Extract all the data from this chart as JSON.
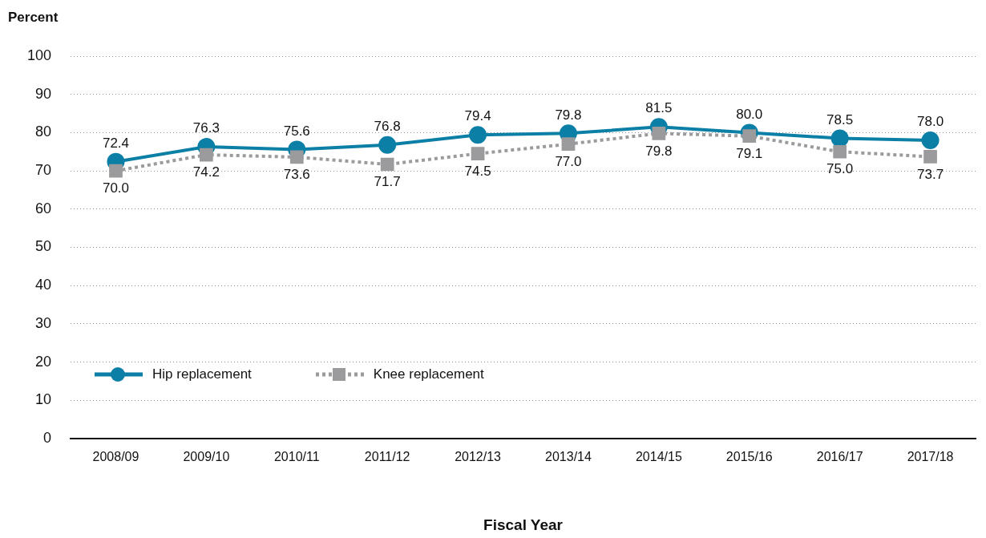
{
  "chart_data": {
    "type": "line",
    "ylabel": "Percent",
    "xlabel": "Fiscal Year",
    "categories": [
      "2008/09",
      "2009/10",
      "2010/11",
      "2011/12",
      "2012/13",
      "2013/14",
      "2014/15",
      "2015/16",
      "2016/17",
      "2017/18"
    ],
    "series": [
      {
        "name": "Hip replacement",
        "color": "#0b7fa5",
        "marker": "circle",
        "line_style": "solid",
        "values": [
          72.4,
          76.3,
          75.6,
          76.8,
          79.4,
          79.8,
          81.5,
          80.0,
          78.5,
          78.0
        ],
        "value_labels": [
          "72.4",
          "76.3",
          "75.6",
          "76.8",
          "79.4",
          "79.8",
          "81.5",
          "80.0",
          "78.5",
          "78.0"
        ]
      },
      {
        "name": "Knee replacement",
        "color": "#9b9b9d",
        "marker": "square",
        "line_style": "dotted",
        "values": [
          70.0,
          74.2,
          73.6,
          71.7,
          74.5,
          77.0,
          79.8,
          79.1,
          75.0,
          73.7
        ],
        "value_labels": [
          "70.0",
          "74.2",
          "73.6",
          "71.7",
          "74.5",
          "77.0",
          "79.8",
          "79.1",
          "75.0",
          "73.7"
        ]
      }
    ],
    "ylim": [
      0,
      100
    ],
    "yticks": [
      0,
      10,
      20,
      30,
      40,
      50,
      60,
      70,
      80,
      90,
      100
    ],
    "grid": "y",
    "legend": "bottom left"
  }
}
